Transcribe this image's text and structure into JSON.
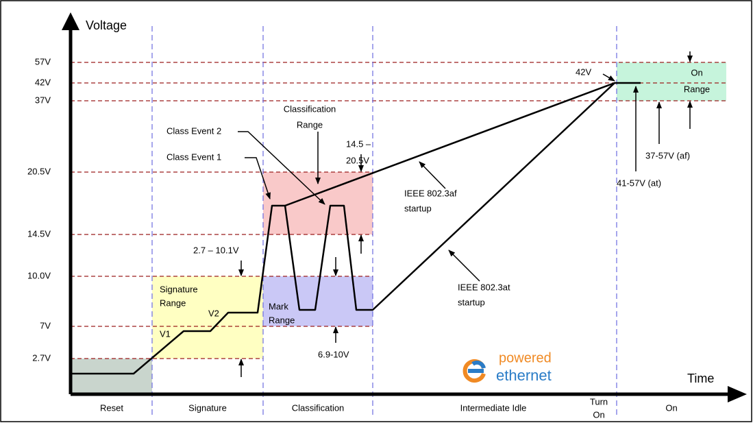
{
  "diagram": {
    "y_label": "Voltage",
    "x_label": "Time",
    "levels": [
      "57V",
      "42V",
      "37V",
      "20.5V",
      "14.5V",
      "10.0V",
      "7V",
      "2.7V"
    ],
    "phases": [
      "Reset",
      "Signature",
      "Classification",
      "Intermediate Idle",
      [
        "Turn",
        "On"
      ],
      "On"
    ],
    "labels": {
      "peak": "42V",
      "on_range": [
        "On",
        "Range"
      ],
      "class_range": [
        "Classification",
        "Range"
      ],
      "class_event_2": "Class Event 2",
      "class_event_1": "Class Event 1",
      "class_window": [
        "14.5 –",
        "20.5V"
      ],
      "af": [
        "IEEE 802.3af",
        "startup"
      ],
      "at": [
        "IEEE 802.3at",
        "startup"
      ],
      "at_range": "41-57V (at)",
      "af_range": "37-57V (af)",
      "sig_window": "2.7 – 10.1V",
      "sig_range": [
        "Signature",
        "Range"
      ],
      "v1": "V1",
      "v2": "V2",
      "mark_range": [
        "Mark",
        "Range"
      ],
      "mark_window": "6.9-10V"
    },
    "logo": [
      "powered",
      "ethernet"
    ]
  }
}
